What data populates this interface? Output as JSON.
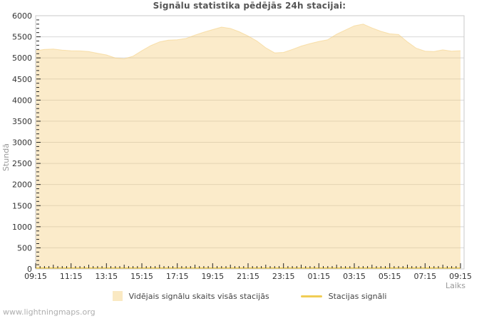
{
  "title": "Signālu statistika pēdējās 24h stacijai:",
  "watermark": "www.lightningmaps.org",
  "colors": {
    "area_fill_base": "#f4ce7b",
    "area_fill_opacity": 0.4,
    "station_line": "#eec93f",
    "gridline": "#d8d8d8",
    "plot_border": "#c9c9c9",
    "tick": "#222222",
    "tick_label": "#333333",
    "title_text": "#555555",
    "axis_caption": "#999999",
    "watermark_text": "#aeaeae"
  },
  "chart_data": {
    "type": "area",
    "title": "Signālu statistika pēdējās 24h stacijai:",
    "ylabel": "Stundā",
    "xlabel": "Laiks",
    "ylim": [
      0,
      6000
    ],
    "y_tick_step": 500,
    "y_minor_step": 100,
    "grid": true,
    "legend_position": "bottom",
    "x_tick_labels": [
      "09:15",
      "11:15",
      "13:15",
      "15:15",
      "17:15",
      "19:15",
      "21:15",
      "23:15",
      "01:15",
      "03:15",
      "05:15",
      "07:15",
      "09:15"
    ],
    "x": [
      "09:15",
      "09:45",
      "10:15",
      "10:45",
      "11:15",
      "11:45",
      "12:15",
      "12:45",
      "13:15",
      "13:45",
      "14:15",
      "14:45",
      "15:15",
      "15:45",
      "16:15",
      "16:45",
      "17:15",
      "17:45",
      "18:15",
      "18:45",
      "19:15",
      "19:45",
      "20:15",
      "20:45",
      "21:15",
      "21:45",
      "22:15",
      "22:45",
      "23:15",
      "23:45",
      "00:15",
      "00:45",
      "01:15",
      "01:45",
      "02:15",
      "02:45",
      "03:15",
      "03:45",
      "04:15",
      "04:45",
      "05:15",
      "05:45",
      "06:15",
      "06:45",
      "07:15",
      "07:45",
      "08:15",
      "08:45",
      "09:15"
    ],
    "series": [
      {
        "name": "Vidējais signālu skaits visās stacijās",
        "type": "area",
        "values": [
          5170,
          5200,
          5210,
          5185,
          5170,
          5165,
          5150,
          5110,
          5070,
          5000,
          4980,
          5040,
          5170,
          5290,
          5380,
          5420,
          5430,
          5460,
          5540,
          5610,
          5670,
          5730,
          5700,
          5620,
          5520,
          5400,
          5240,
          5120,
          5130,
          5200,
          5280,
          5340,
          5390,
          5430,
          5560,
          5660,
          5760,
          5800,
          5710,
          5630,
          5570,
          5555,
          5380,
          5230,
          5160,
          5150,
          5190,
          5160,
          5170
        ]
      },
      {
        "name": "Stacijas signāli",
        "type": "line",
        "values": [
          0,
          0,
          0,
          0,
          0,
          0,
          0,
          0,
          0,
          0,
          0,
          0,
          0,
          0,
          0,
          0,
          0,
          0,
          0,
          0,
          0,
          0,
          0,
          0,
          0,
          0,
          0,
          0,
          0,
          0,
          0,
          0,
          0,
          0,
          0,
          0,
          0,
          0,
          0,
          0,
          0,
          0,
          0,
          0,
          0,
          0,
          0,
          0,
          0
        ]
      }
    ]
  }
}
